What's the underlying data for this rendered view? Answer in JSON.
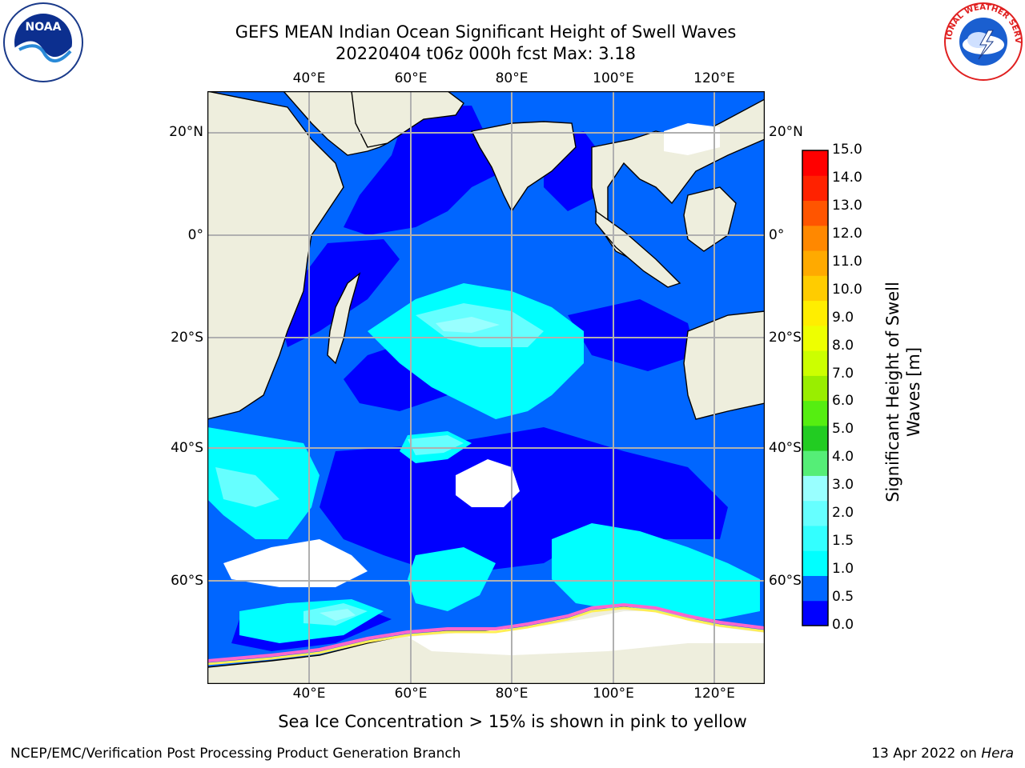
{
  "title": {
    "line1": "GEFS MEAN Indian Ocean Significant Height of Swell Waves",
    "line2": "20220404 t06z 000h fcst   Max: 3.18"
  },
  "map": {
    "lon_labels": [
      "40°E",
      "60°E",
      "80°E",
      "100°E",
      "120°E"
    ],
    "lat_labels": [
      "20°N",
      "0°",
      "20°S",
      "40°S",
      "60°S"
    ],
    "lon_range": [
      20,
      130
    ],
    "lat_range": [
      -76,
      28
    ],
    "ocean_color_levels": [
      "#0000ff",
      "#0066ff",
      "#00ffff",
      "#66ffff",
      "#99ffff"
    ],
    "land_color": "#eeeedd",
    "ice_color": "#ffffff",
    "grid": true
  },
  "colorbar": {
    "label_line1": "Significant Height of Swell",
    "label_line2": "Waves [m]",
    "ticks": [
      "0.0",
      "0.5",
      "1.0",
      "1.5",
      "2.0",
      "3.0",
      "4.0",
      "5.0",
      "6.0",
      "7.0",
      "8.0",
      "9.0",
      "10.0",
      "11.0",
      "12.0",
      "13.0",
      "14.0",
      "15.0"
    ],
    "colors": [
      "#0000ff",
      "#0066ff",
      "#00ffff",
      "#33ffff",
      "#66ffff",
      "#99ffff",
      "#55ee77",
      "#22cc22",
      "#55ee11",
      "#99ee00",
      "#ccff00",
      "#eeff00",
      "#ffee00",
      "#ffcc00",
      "#ffaa00",
      "#ff8800",
      "#ff5500",
      "#ff2200",
      "#ff0000"
    ]
  },
  "footnote": "Sea Ice Concentration > 15% is shown in pink to yellow",
  "credit_left": "NCEP/EMC/Verification Post Processing Product Generation Branch",
  "credit_right_prefix": "13 Apr 2022 on ",
  "credit_right_host": "Hera",
  "logos": {
    "noaa_text": "NOAA",
    "nws_text": "NATIONAL WEATHER SERVICE"
  }
}
